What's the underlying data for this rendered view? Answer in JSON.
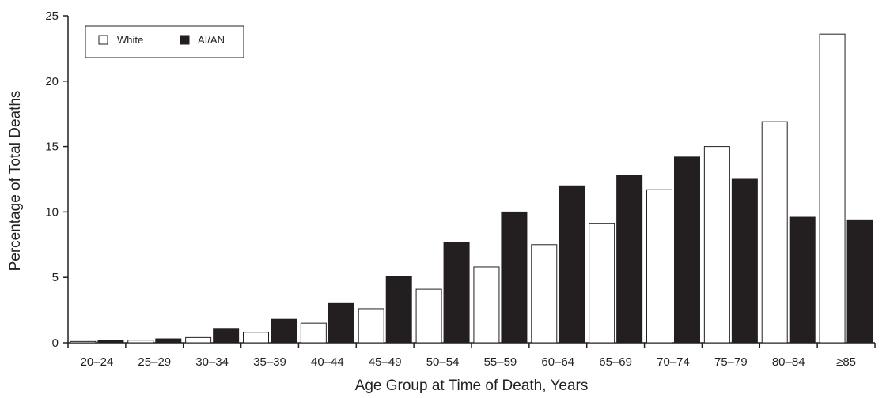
{
  "chart_data": {
    "type": "bar",
    "title": "",
    "xlabel": "Age Group at Time of Death, Years",
    "ylabel": "Percentage of Total Deaths",
    "ylim": [
      0,
      25
    ],
    "yticks": [
      "0",
      "5",
      "10",
      "15",
      "20",
      "25"
    ],
    "categories": [
      "20–24",
      "25–29",
      "30–34",
      "35–39",
      "40–44",
      "45–49",
      "50–54",
      "55–59",
      "60–64",
      "65–69",
      "70–74",
      "75–79",
      "80–84",
      "≥85"
    ],
    "series": [
      {
        "name": "White",
        "color": "#ffffff",
        "values": [
          0.1,
          0.2,
          0.4,
          0.8,
          1.5,
          2.6,
          4.1,
          5.8,
          7.5,
          9.1,
          11.7,
          15.0,
          16.9,
          23.6
        ]
      },
      {
        "name": "AI/AN",
        "color": "#231f20",
        "values": [
          0.2,
          0.3,
          1.1,
          1.8,
          3.0,
          5.1,
          7.7,
          10.0,
          12.0,
          12.8,
          14.2,
          12.5,
          9.6,
          9.4
        ]
      }
    ],
    "grid": false,
    "legend_position": "top-left"
  }
}
